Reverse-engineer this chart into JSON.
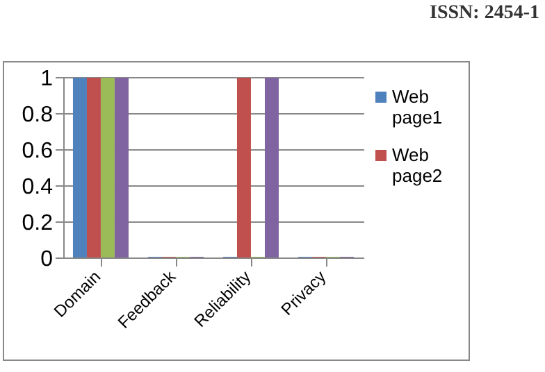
{
  "chart_data": {
    "type": "bar",
    "categories": [
      "Domain",
      "Feedback",
      "Reliability",
      "Privacy"
    ],
    "series": [
      {
        "name": "Web page1",
        "color": "#4f81bd",
        "values": [
          1,
          0,
          0,
          0
        ]
      },
      {
        "name": "Web page2",
        "color": "#c0504d",
        "values": [
          1,
          0,
          1,
          0
        ]
      },
      {
        "color": "#9bbb59",
        "values": [
          1,
          0,
          0,
          0
        ]
      },
      {
        "color": "#8064a2",
        "values": [
          1,
          0,
          1,
          0
        ]
      }
    ],
    "ylim": [
      0,
      1
    ],
    "yticks": [
      0,
      0.2,
      0.4,
      0.6,
      0.8,
      1
    ],
    "grid": "y",
    "legend": "right",
    "annotations": [
      "ISSN: 2454-1"
    ]
  }
}
